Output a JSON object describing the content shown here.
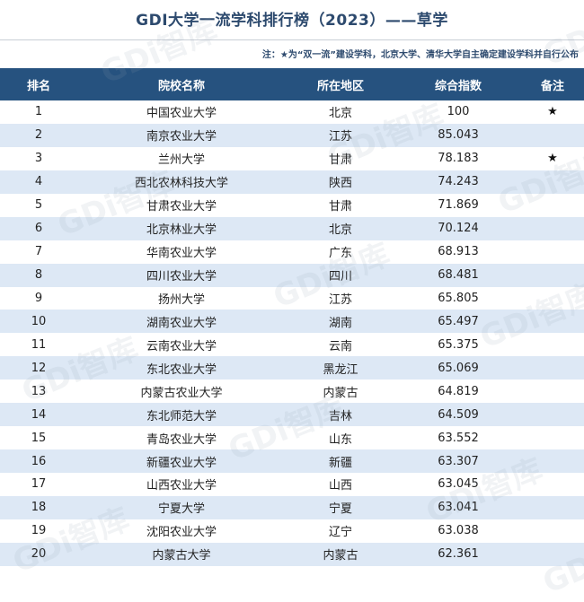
{
  "title": "GDI大学一流学科排行榜（2023）——草学",
  "note": "注：★为“双一流”建设学科，北京大学、清华大学自主确定建设学科并自行公布",
  "watermark_text": "GDi智库",
  "headers": [
    "排名",
    "院校名称",
    "所在地区",
    "综合指数",
    "备注"
  ],
  "rows": [
    {
      "rank": "1",
      "name": "中国农业大学",
      "region": "北京",
      "score": "100",
      "mark": "★"
    },
    {
      "rank": "2",
      "name": "南京农业大学",
      "region": "江苏",
      "score": "85.043",
      "mark": ""
    },
    {
      "rank": "3",
      "name": "兰州大学",
      "region": "甘肃",
      "score": "78.183",
      "mark": "★"
    },
    {
      "rank": "4",
      "name": "西北农林科技大学",
      "region": "陕西",
      "score": "74.243",
      "mark": ""
    },
    {
      "rank": "5",
      "name": "甘肃农业大学",
      "region": "甘肃",
      "score": "71.869",
      "mark": ""
    },
    {
      "rank": "6",
      "name": "北京林业大学",
      "region": "北京",
      "score": "70.124",
      "mark": ""
    },
    {
      "rank": "7",
      "name": "华南农业大学",
      "region": "广东",
      "score": "68.913",
      "mark": ""
    },
    {
      "rank": "8",
      "name": "四川农业大学",
      "region": "四川",
      "score": "68.481",
      "mark": ""
    },
    {
      "rank": "9",
      "name": "扬州大学",
      "region": "江苏",
      "score": "65.805",
      "mark": ""
    },
    {
      "rank": "10",
      "name": "湖南农业大学",
      "region": "湖南",
      "score": "65.497",
      "mark": ""
    },
    {
      "rank": "11",
      "name": "云南农业大学",
      "region": "云南",
      "score": "65.375",
      "mark": ""
    },
    {
      "rank": "12",
      "name": "东北农业大学",
      "region": "黑龙江",
      "score": "65.069",
      "mark": ""
    },
    {
      "rank": "13",
      "name": "内蒙古农业大学",
      "region": "内蒙古",
      "score": "64.819",
      "mark": ""
    },
    {
      "rank": "14",
      "name": "东北师范大学",
      "region": "吉林",
      "score": "64.509",
      "mark": ""
    },
    {
      "rank": "15",
      "name": "青岛农业大学",
      "region": "山东",
      "score": "63.552",
      "mark": ""
    },
    {
      "rank": "16",
      "name": "新疆农业大学",
      "region": "新疆",
      "score": "63.307",
      "mark": ""
    },
    {
      "rank": "17",
      "name": "山西农业大学",
      "region": "山西",
      "score": "63.045",
      "mark": ""
    },
    {
      "rank": "18",
      "name": "宁夏大学",
      "region": "宁夏",
      "score": "63.041",
      "mark": ""
    },
    {
      "rank": "19",
      "name": "沈阳农业大学",
      "region": "辽宁",
      "score": "63.038",
      "mark": ""
    },
    {
      "rank": "20",
      "name": "内蒙古大学",
      "region": "内蒙古",
      "score": "62.361",
      "mark": ""
    }
  ],
  "colors": {
    "header_bg": "#26527f",
    "header_text": "#ffffff",
    "stripe": "#dde8f5",
    "title": "#2d4a6e"
  }
}
